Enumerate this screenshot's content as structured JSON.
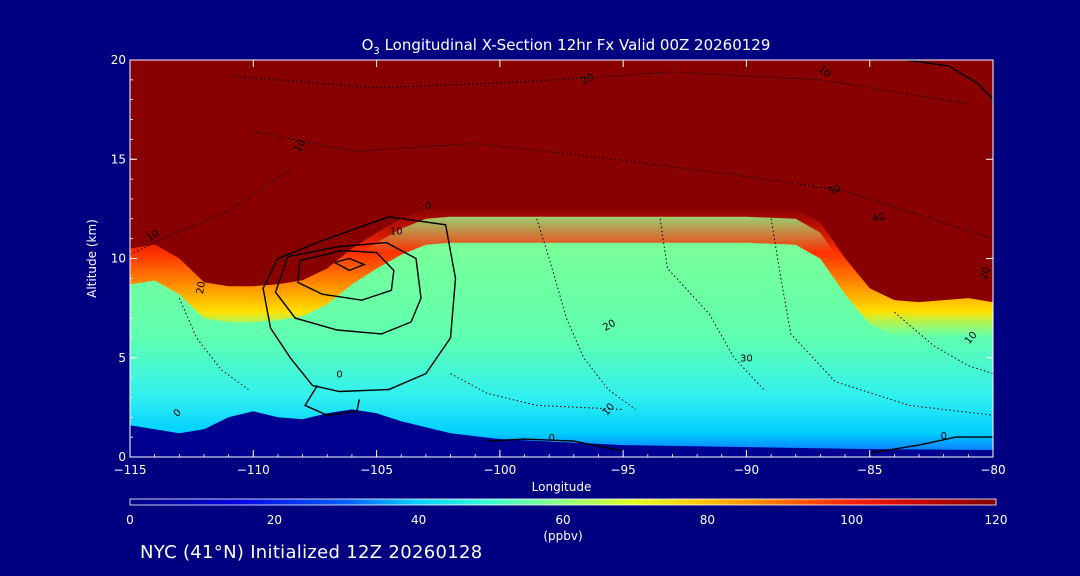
{
  "colors": {
    "background": "#000080",
    "text": "#ffffff",
    "contour": "#000000"
  },
  "footer": {
    "text": "NYC (41°N) Initialized 12Z 20260128"
  },
  "chart_data": {
    "type": "heatmap",
    "title_prefix": "O",
    "title_subscript": "3",
    "title_suffix": " Longitudinal X-Section 12hr  Fx Valid 00Z 20260129",
    "xlabel": "Longitude",
    "ylabel": "Altitude (km)",
    "xlim": [
      -115,
      -80
    ],
    "ylim": [
      0,
      20
    ],
    "x_ticks": [
      -115,
      -110,
      -105,
      -100,
      -95,
      -90,
      -85,
      -80
    ],
    "x_tick_labels": [
      "−115",
      "−110",
      "−105",
      "−100",
      "−95",
      "−90",
      "−85",
      "−80"
    ],
    "y_ticks": [
      0,
      5,
      10,
      15,
      20
    ],
    "y_tick_labels": [
      "0",
      "5",
      "10",
      "15",
      "20"
    ],
    "colorbar": {
      "label": "(ppbv)",
      "min": 0,
      "max": 120,
      "ticks": [
        0,
        20,
        40,
        60,
        80,
        100,
        120
      ],
      "tick_labels": [
        "0",
        "20",
        "40",
        "60",
        "80",
        "100",
        "120"
      ]
    },
    "tropopause_altitude_km": {
      "lon": [
        -115,
        -114,
        -113,
        -112,
        -111,
        -110,
        -109,
        -108,
        -107,
        -106,
        -105,
        -104,
        -103,
        -102,
        -101,
        -100,
        -95,
        -90,
        -88,
        -87,
        -86,
        -85,
        -84,
        -83,
        -82,
        -81,
        -80
      ],
      "alt": [
        10,
        10.2,
        9.5,
        8.3,
        8.1,
        8.1,
        8.2,
        8.4,
        9.0,
        10.0,
        10.8,
        11.5,
        12.0,
        12.1,
        12.1,
        12.1,
        12.1,
        12.1,
        12.0,
        11.3,
        9.5,
        8.0,
        7.4,
        7.3,
        7.4,
        7.5,
        7.3
      ]
    },
    "terrain_altitude_km": {
      "lon": [
        -115,
        -113,
        -112,
        -111,
        -110,
        -109,
        -108,
        -107,
        -106,
        -105,
        -104,
        -102,
        -100,
        -95,
        -90,
        -85,
        -80
      ],
      "alt": [
        1.6,
        1.2,
        1.4,
        2.0,
        2.3,
        2.0,
        1.9,
        2.2,
        2.4,
        2.2,
        1.8,
        1.2,
        0.9,
        0.6,
        0.5,
        0.4,
        0.35
      ]
    },
    "stratospheric_intrusion_max_ppbv": 120,
    "contour_labels": [
      {
        "text": "20",
        "lon": -96.4,
        "alt": 18.9,
        "angle": -25
      },
      {
        "text": "10",
        "lon": -86.9,
        "alt": 19.3,
        "angle": 40
      },
      {
        "text": "10",
        "lon": -108.0,
        "alt": 15.6,
        "angle": -60
      },
      {
        "text": "30",
        "lon": -86.4,
        "alt": 13.3,
        "angle": -20
      },
      {
        "text": "40",
        "lon": -84.6,
        "alt": 11.9,
        "angle": -15
      },
      {
        "text": "10",
        "lon": -114.0,
        "alt": 11.0,
        "angle": -30
      },
      {
        "text": "20",
        "lon": -112.0,
        "alt": 8.5,
        "angle": -80
      },
      {
        "text": "0",
        "lon": -102.9,
        "alt": 12.5,
        "angle": 0
      },
      {
        "text": "10",
        "lon": -104.2,
        "alt": 11.2,
        "angle": 0
      },
      {
        "text": "20",
        "lon": -95.5,
        "alt": 6.5,
        "angle": -30
      },
      {
        "text": "30",
        "lon": -90.0,
        "alt": 4.8,
        "angle": 0
      },
      {
        "text": "10",
        "lon": -95.5,
        "alt": 2.3,
        "angle": -50
      },
      {
        "text": "10",
        "lon": -80.8,
        "alt": 5.9,
        "angle": -50
      },
      {
        "text": "20",
        "lon": -80.2,
        "alt": 9.2,
        "angle": -70
      },
      {
        "text": "0",
        "lon": -106.5,
        "alt": 4.0,
        "angle": 0
      },
      {
        "text": "0",
        "lon": -113.0,
        "alt": 2.1,
        "angle": -40
      },
      {
        "text": "0",
        "lon": -97.9,
        "alt": 0.8,
        "angle": 0
      },
      {
        "text": "0",
        "lon": -82.0,
        "alt": 0.9,
        "angle": 0
      }
    ]
  }
}
